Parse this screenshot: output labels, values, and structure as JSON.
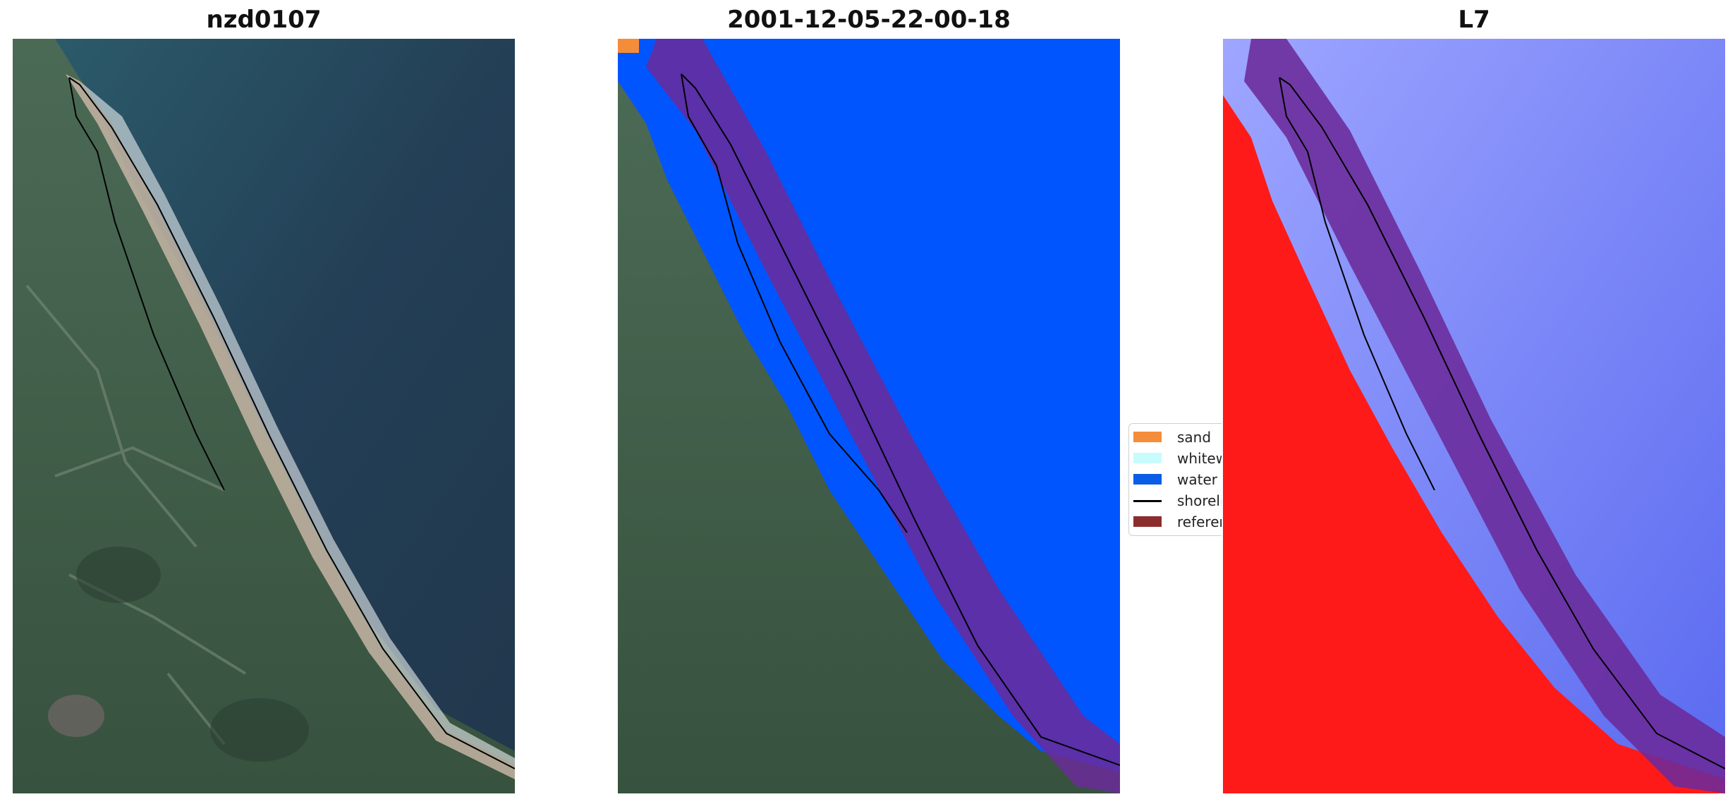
{
  "panels": [
    {
      "title": "nzd0107"
    },
    {
      "title": "2001-12-05-22-00-18"
    },
    {
      "title": "L7"
    }
  ],
  "legend": {
    "items": [
      {
        "label": "sand",
        "color": "#f58c3a",
        "kind": "patch"
      },
      {
        "label": "whitewater",
        "color": "#c8fbfb",
        "kind": "patch"
      },
      {
        "label": "water",
        "color": "#0b5ce6",
        "kind": "patch"
      },
      {
        "label": "shoreline",
        "color": "#000000",
        "kind": "line"
      },
      {
        "label": "reference shoreline buffer",
        "color": "#8b2d2d",
        "kind": "patch"
      }
    ]
  },
  "colors": {
    "satellite_land": "#3d5a44",
    "satellite_sea": "#264a5c",
    "sand_beach": "#c9b8a8",
    "classified_water": "#0055ff",
    "buffer_overlay": "#6b2a9a",
    "index_positive": "#ff1a1a",
    "index_negative": "#5a6af0"
  }
}
